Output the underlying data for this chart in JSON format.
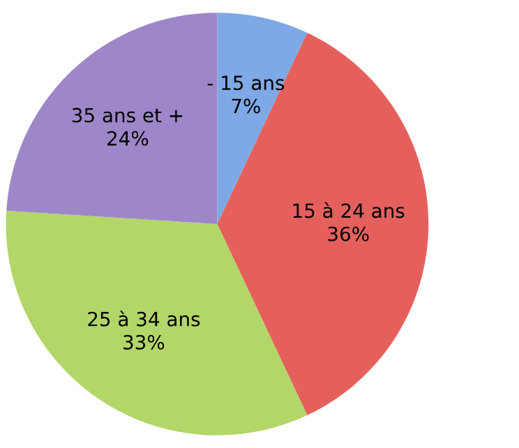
{
  "chart_data": {
    "type": "pie",
    "categories": [
      "- 15 ans",
      "15 à 24 ans",
      "25 à 34 ans",
      "35 ans et +"
    ],
    "values": [
      7,
      36,
      33,
      24
    ],
    "value_labels": [
      "7%",
      "36%",
      "33%",
      "24%"
    ],
    "colors": [
      "#7ea9e6",
      "#e5605c",
      "#b3d668",
      "#9d87c9"
    ],
    "legend": false
  }
}
